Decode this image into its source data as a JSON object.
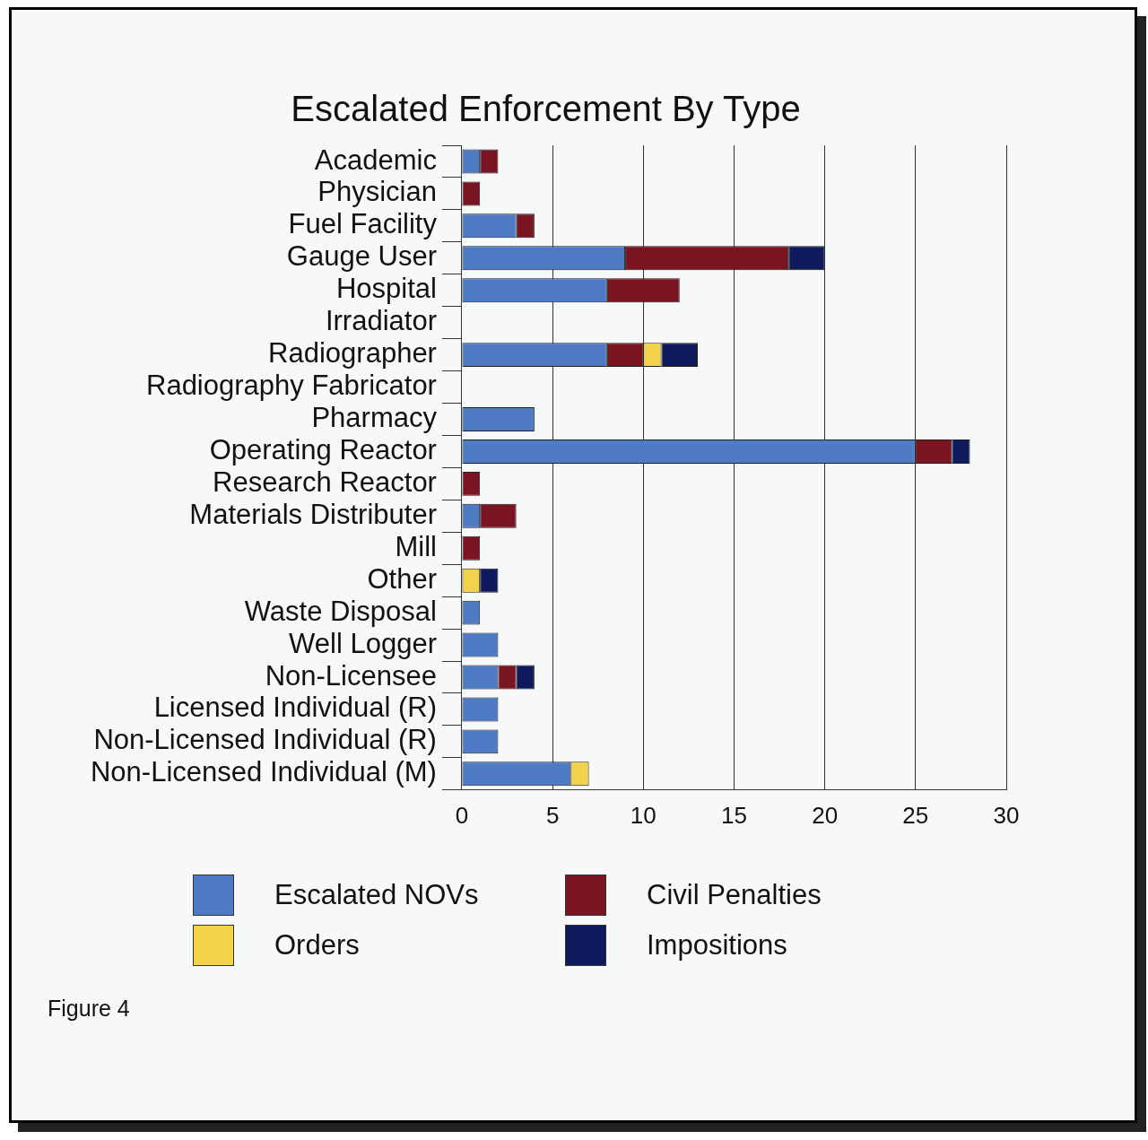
{
  "chart_data": {
    "type": "bar",
    "orientation": "horizontal",
    "stacked": true,
    "title": "Escalated Enforcement By Type",
    "categories": [
      "Academic",
      "Physician",
      "Fuel Facility",
      "Gauge User",
      "Hospital",
      "Irradiator",
      "Radiographer",
      "Radiography Fabricator",
      "Pharmacy",
      "Operating Reactor",
      "Research Reactor",
      "Materials Distributer",
      "Mill",
      "Other",
      "Waste Disposal",
      "Well Logger",
      "Non-Licensee",
      "Licensed Individual (R)",
      "Non-Licensed Individual (R)",
      "Non-Licensed Individual (M)"
    ],
    "series": [
      {
        "name": "Escalated NOVs",
        "color": "#4f7ac4",
        "values": [
          1,
          0,
          3,
          9,
          8,
          0,
          8,
          0,
          4,
          25,
          0,
          1,
          0,
          0,
          1,
          2,
          2,
          2,
          2,
          6
        ]
      },
      {
        "name": "Civil Penalties",
        "color": "#7a1420",
        "values": [
          1,
          1,
          1,
          9,
          4,
          0,
          2,
          0,
          0,
          2,
          1,
          2,
          1,
          0,
          0,
          0,
          1,
          0,
          0,
          0
        ]
      },
      {
        "name": "Orders",
        "color": "#f2d24a",
        "values": [
          0,
          0,
          0,
          0,
          0,
          0,
          1,
          0,
          0,
          0,
          0,
          0,
          0,
          1,
          0,
          0,
          0,
          0,
          0,
          1
        ]
      },
      {
        "name": "Impositions",
        "color": "#0f1a5c",
        "values": [
          0,
          0,
          0,
          2,
          0,
          0,
          2,
          0,
          0,
          1,
          0,
          0,
          0,
          1,
          0,
          0,
          1,
          0,
          0,
          0
        ]
      }
    ],
    "xlim": [
      0,
      30
    ],
    "xticks": [
      0,
      5,
      10,
      15,
      20,
      25,
      30
    ],
    "grid": "x",
    "legend": "bottom",
    "annotations": [
      "Figure 4"
    ]
  }
}
